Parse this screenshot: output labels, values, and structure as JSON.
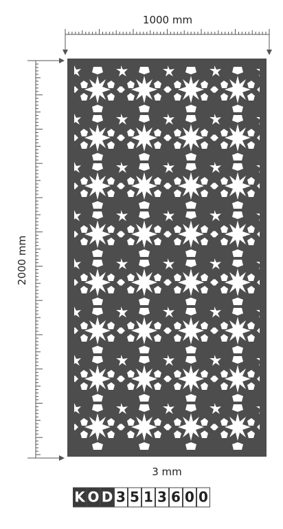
{
  "dimensions": {
    "width": "1000 mm",
    "height": "2000 mm",
    "thickness": "3 mm"
  },
  "code": {
    "prefix": [
      "K",
      "O",
      "D"
    ],
    "digits": [
      "3",
      "5",
      "1",
      "3",
      "6",
      "0",
      "0"
    ]
  }
}
